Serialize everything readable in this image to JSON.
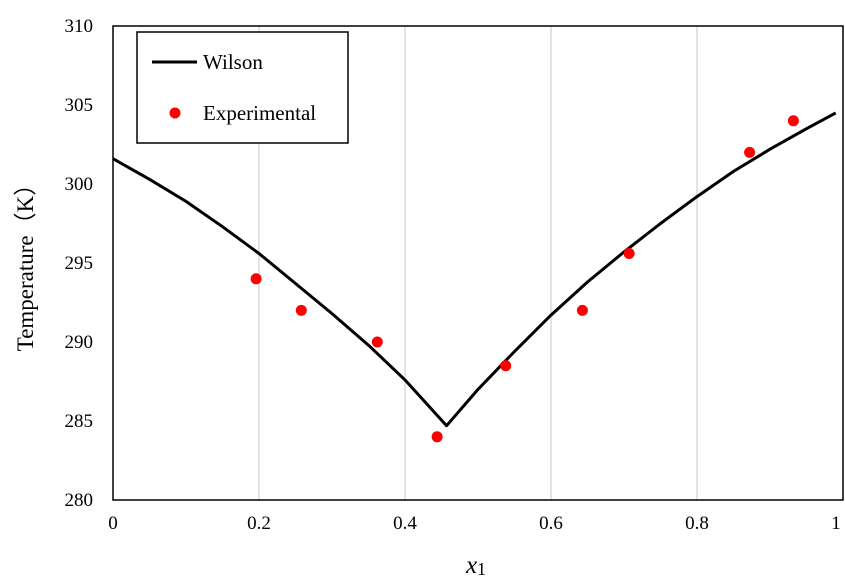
{
  "chart_data": {
    "type": "line",
    "xlabel": "x1",
    "ylabel": "Temperature（K）",
    "xlim": [
      0,
      1
    ],
    "ylim": [
      280,
      310
    ],
    "x_ticks": [
      0,
      0.2,
      0.4,
      0.6,
      0.8,
      1
    ],
    "x_tick_labels": [
      "0",
      "0.2",
      "0.4",
      "0.6",
      "0.8",
      "1"
    ],
    "y_ticks": [
      280,
      285,
      290,
      295,
      300,
      305,
      310
    ],
    "y_tick_labels": [
      "280",
      "285",
      "290",
      "295",
      "300",
      "305",
      "310"
    ],
    "grid": "vertical",
    "legend_placement": "top-left",
    "series": [
      {
        "name": "Wilson",
        "style": "line",
        "color": "#000000",
        "x": [
          0,
          0.05,
          0.1,
          0.15,
          0.2,
          0.25,
          0.3,
          0.35,
          0.4,
          0.457,
          0.5,
          0.55,
          0.6,
          0.65,
          0.7,
          0.75,
          0.8,
          0.85,
          0.9,
          0.95,
          0.99
        ],
        "y": [
          301.6,
          300.3,
          298.9,
          297.3,
          295.6,
          293.7,
          291.8,
          289.8,
          287.6,
          284.7,
          287.0,
          289.4,
          291.7,
          293.8,
          295.7,
          297.5,
          299.2,
          300.8,
          302.2,
          303.5,
          304.5
        ]
      },
      {
        "name": "Experimental",
        "style": "scatter",
        "color": "#ff0000",
        "x": [
          0.196,
          0.258,
          0.362,
          0.444,
          0.538,
          0.643,
          0.707,
          0.872,
          0.932
        ],
        "y": [
          294.0,
          292.0,
          290.0,
          284.0,
          288.5,
          292.0,
          295.6,
          302.0,
          304.0
        ]
      }
    ]
  }
}
